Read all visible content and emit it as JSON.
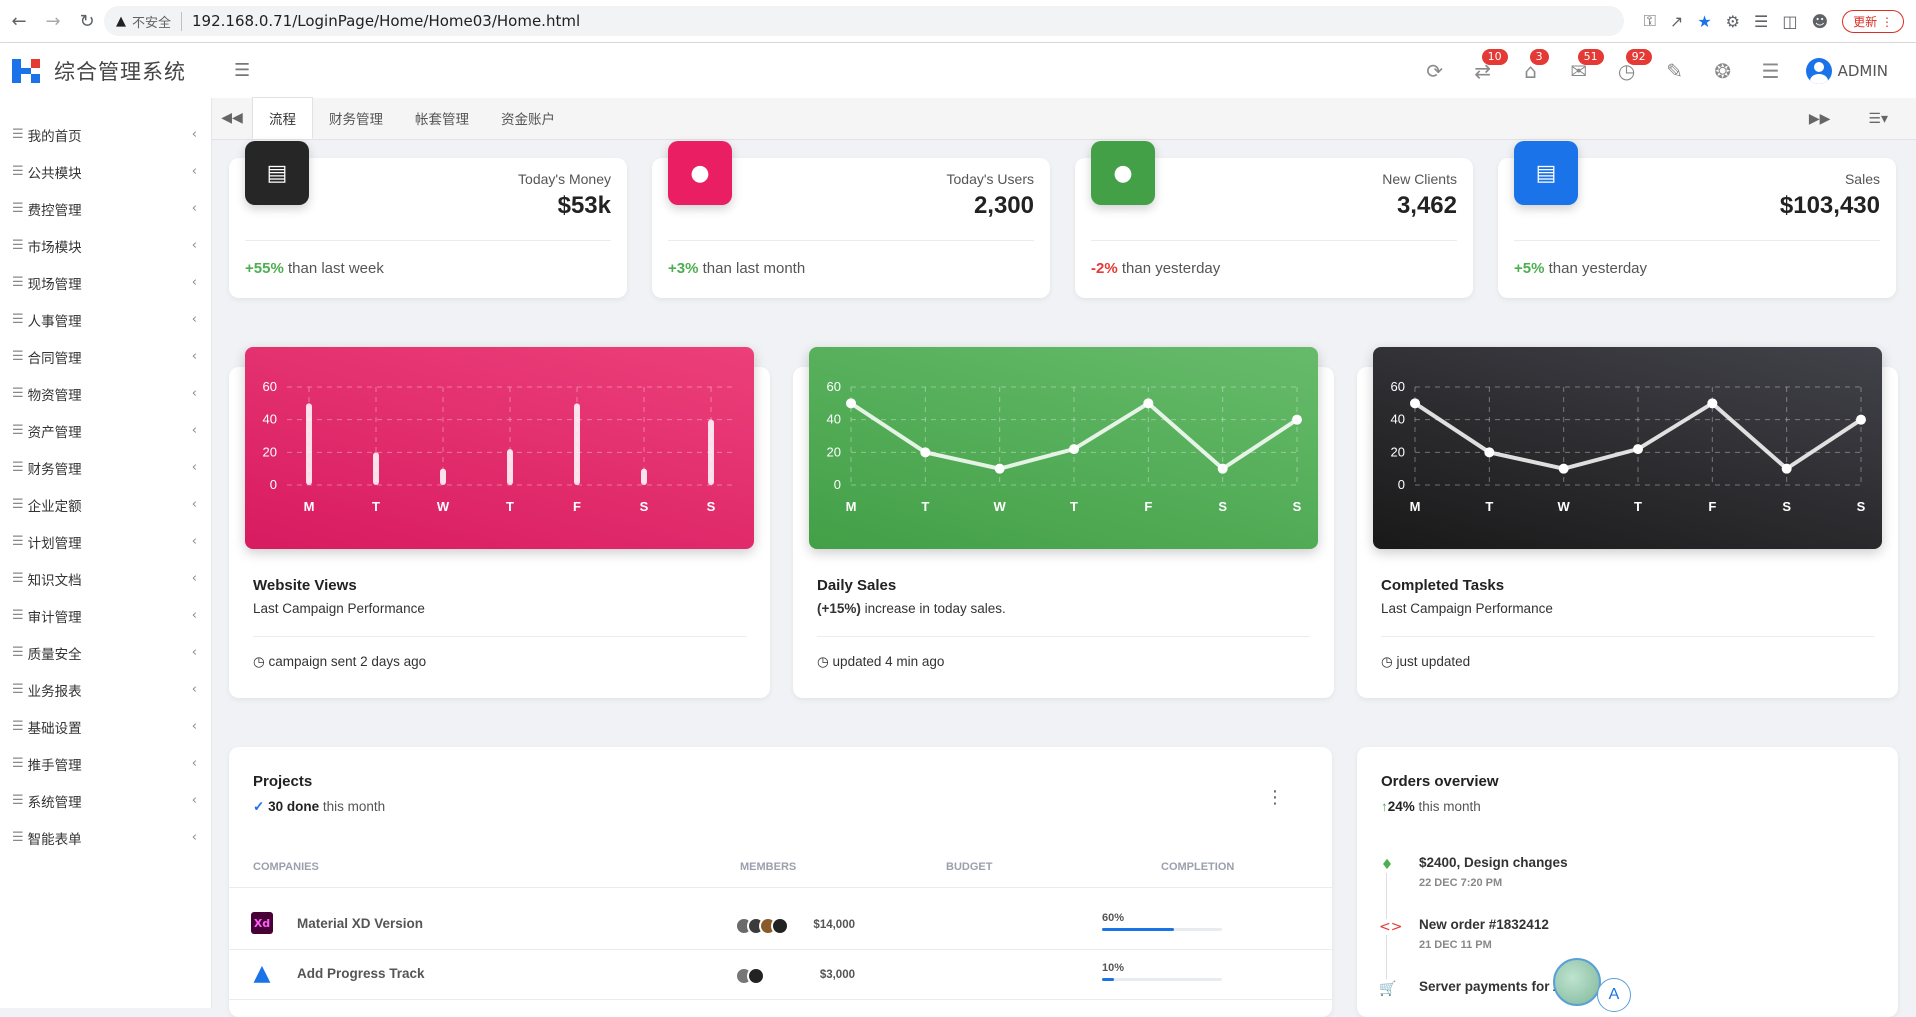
{
  "browser": {
    "security_label": "不安全",
    "url": "192.168.0.71/LoginPage/Home/Home03/Home.html",
    "update_label": "更新"
  },
  "app": {
    "title": "综合管理系统",
    "user": "ADMIN",
    "badges": {
      "tasks": "10",
      "home": "3",
      "messages": "51",
      "alarms": "92"
    }
  },
  "sidebar": {
    "items": [
      {
        "label": "我的首页"
      },
      {
        "label": "公共模块"
      },
      {
        "label": "费控管理"
      },
      {
        "label": "市场模块"
      },
      {
        "label": "现场管理"
      },
      {
        "label": "人事管理"
      },
      {
        "label": "合同管理"
      },
      {
        "label": "物资管理"
      },
      {
        "label": "资产管理"
      },
      {
        "label": "财务管理"
      },
      {
        "label": "企业定额"
      },
      {
        "label": "计划管理"
      },
      {
        "label": "知识文档"
      },
      {
        "label": "审计管理"
      },
      {
        "label": "质量安全"
      },
      {
        "label": "业务报表"
      },
      {
        "label": "基础设置"
      },
      {
        "label": "推手管理"
      },
      {
        "label": "系统管理"
      },
      {
        "label": "智能表单"
      }
    ]
  },
  "tabs": [
    {
      "label": "流程",
      "active": true
    },
    {
      "label": "财务管理"
    },
    {
      "label": "帐套管理"
    },
    {
      "label": "资金账户"
    }
  ],
  "stats": [
    {
      "label": "Today's Money",
      "value": "$53k",
      "change": "+55%",
      "change_text": " than last week",
      "trend": "pos",
      "icon": "weekend-icon",
      "color": "#262626"
    },
    {
      "label": "Today's Users",
      "value": "2,300",
      "change": "+3%",
      "change_text": " than last month",
      "trend": "pos",
      "icon": "person-icon",
      "color": "#e91e63"
    },
    {
      "label": "New Clients",
      "value": "3,462",
      "change": "-2%",
      "change_text": " than yesterday",
      "trend": "neg",
      "icon": "person-add-icon",
      "color": "#43a047"
    },
    {
      "label": "Sales",
      "value": "$103,430",
      "change": "+5%",
      "change_text": " than yesterday",
      "trend": "pos",
      "icon": "weekend-icon",
      "color": "#1a73e8"
    }
  ],
  "charts": [
    {
      "title": "Website Views",
      "subtitle": "Last Campaign Performance",
      "footer": "campaign sent 2 days ago"
    },
    {
      "title": "Daily Sales",
      "subtitle_bold": "(+15%)",
      "subtitle": " increase in today sales.",
      "footer": "updated 4 min ago"
    },
    {
      "title": "Completed Tasks",
      "subtitle": "Last Campaign Performance",
      "footer": "just updated"
    }
  ],
  "chart_data": [
    {
      "type": "bar",
      "categories": [
        "M",
        "T",
        "W",
        "T",
        "F",
        "S",
        "S"
      ],
      "values": [
        50,
        20,
        10,
        22,
        50,
        10,
        40
      ],
      "ylim": [
        0,
        60
      ],
      "yticks": [
        0,
        20,
        40,
        60
      ],
      "grid": true,
      "color": "#e91e63"
    },
    {
      "type": "line",
      "categories": [
        "M",
        "T",
        "W",
        "T",
        "F",
        "S",
        "S"
      ],
      "values": [
        50,
        20,
        10,
        22,
        50,
        10,
        40
      ],
      "ylim": [
        0,
        60
      ],
      "yticks": [
        0,
        20,
        40,
        60
      ],
      "grid": true,
      "color": "#43a047"
    },
    {
      "type": "line",
      "categories": [
        "M",
        "T",
        "W",
        "T",
        "F",
        "S",
        "S"
      ],
      "values": [
        50,
        20,
        10,
        22,
        50,
        10,
        40
      ],
      "ylim": [
        0,
        60
      ],
      "yticks": [
        0,
        20,
        40,
        60
      ],
      "grid": true,
      "color": "#262626"
    }
  ],
  "projects": {
    "title": "Projects",
    "done": "30 done",
    "period": " this month",
    "headers": {
      "companies": "COMPANIES",
      "members": "MEMBERS",
      "budget": "BUDGET",
      "completion": "COMPLETION"
    },
    "rows": [
      {
        "company": "Material XD Version",
        "logo": "Xd",
        "budget": "$14,000",
        "completion_label": "60%",
        "completion": 0.6
      },
      {
        "company": "Add Progress Track",
        "logo": "atlassian-icon",
        "budget": "$3,000",
        "completion_label": "10%",
        "completion": 0.1
      }
    ]
  },
  "orders": {
    "title": "Orders overview",
    "change": "24%",
    "period": " this month",
    "items": [
      {
        "text": "$2400, Design changes",
        "date": "22 DEC 7:20 PM",
        "icon": "bell-icon",
        "color": "#4caf50"
      },
      {
        "text": "New order #1832412",
        "date": "21 DEC 11 PM",
        "icon": "code-icon",
        "color": "#e53935"
      },
      {
        "text": "Server payments for A",
        "date": "",
        "icon": "cart-icon",
        "color": "#1a73e8"
      }
    ]
  },
  "widget": {
    "letter": "A"
  }
}
